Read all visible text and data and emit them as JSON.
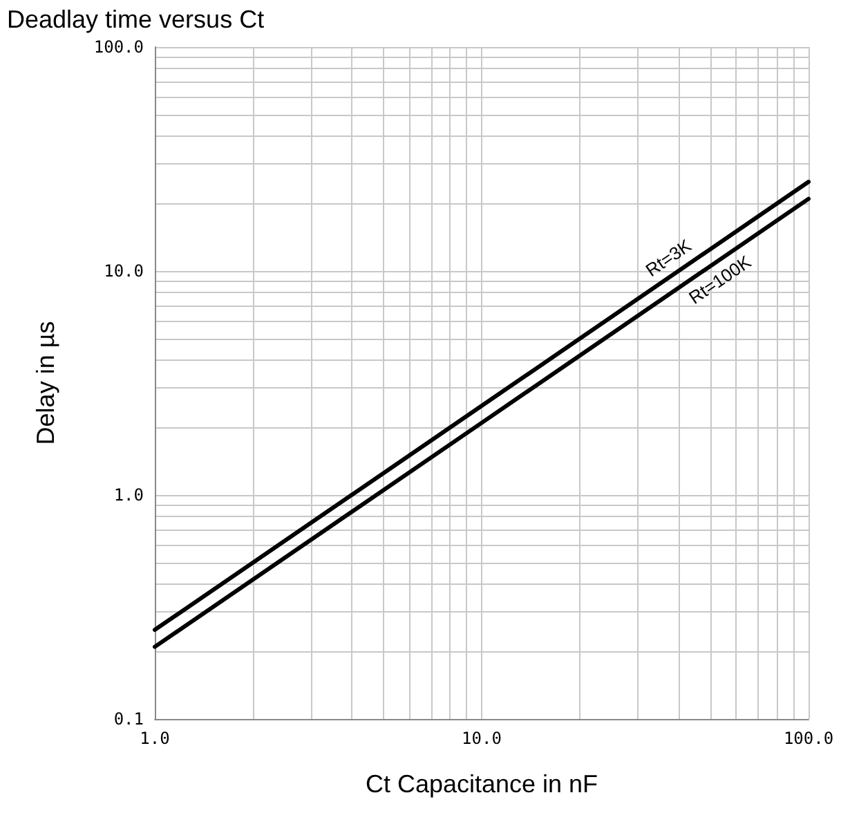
{
  "chart_data": {
    "type": "line",
    "title": "Deadlay time versus Ct",
    "xlabel": "Ct Capacitance in nF",
    "ylabel": "Delay in µs",
    "log": "xy",
    "grid": true,
    "legend": false,
    "marker": "none",
    "line_style": "solid",
    "x": [
      1,
      10,
      100
    ],
    "series": [
      {
        "name": "Rt=3K",
        "color": "#000000",
        "values": [
          0.25,
          2.5,
          25
        ]
      },
      {
        "name": "Rt=100K",
        "color": "#000000",
        "values": [
          0.21,
          2.1,
          21
        ]
      }
    ],
    "xlim": [
      1,
      100
    ],
    "ylim": [
      0.1,
      100
    ],
    "xticks": [
      {
        "value": 1,
        "label": "1.0"
      },
      {
        "value": 2,
        "label": null
      },
      {
        "value": 3,
        "label": null
      },
      {
        "value": 4,
        "label": null
      },
      {
        "value": 5,
        "label": null
      },
      {
        "value": 6,
        "label": null
      },
      {
        "value": 7,
        "label": null
      },
      {
        "value": 8,
        "label": null
      },
      {
        "value": 9,
        "label": null
      },
      {
        "value": 10,
        "label": "10.0"
      },
      {
        "value": 20,
        "label": null
      },
      {
        "value": 30,
        "label": null
      },
      {
        "value": 40,
        "label": null
      },
      {
        "value": 50,
        "label": null
      },
      {
        "value": 60,
        "label": null
      },
      {
        "value": 70,
        "label": null
      },
      {
        "value": 80,
        "label": null
      },
      {
        "value": 90,
        "label": null
      },
      {
        "value": 100,
        "label": "100.0"
      }
    ],
    "yticks": [
      0.1,
      {
        "value": 0.2,
        "label": null
      },
      {
        "value": 0.3,
        "label": null
      },
      {
        "value": 0.4,
        "label": null
      },
      {
        "value": 0.5,
        "label": null
      },
      {
        "value": 0.6,
        "label": null
      },
      {
        "value": 0.7,
        "label": null
      },
      {
        "value": 0.8,
        "label": null
      },
      {
        "value": 0.9,
        "label": null
      },
      {
        "value": 1,
        "label": "1.0"
      },
      {
        "value": 2,
        "label": null
      },
      {
        "value": 3,
        "label": null
      },
      {
        "value": 4,
        "label": null
      },
      {
        "value": 5,
        "label": null
      },
      {
        "value": 6,
        "label": null
      },
      {
        "value": 7,
        "label": null
      },
      {
        "value": 8,
        "label": null
      },
      {
        "value": 9,
        "label": null
      },
      {
        "value": 10,
        "label": "10.0"
      },
      {
        "value": 20,
        "label": null
      },
      {
        "value": 30,
        "label": null
      },
      {
        "value": 40,
        "label": null
      },
      {
        "value": 50,
        "label": null
      },
      {
        "value": 60,
        "label": null
      },
      {
        "value": 70,
        "label": null
      },
      {
        "value": 80,
        "label": null
      },
      {
        "value": 90,
        "label": null
      },
      {
        "value": 100,
        "label": "100.0"
      }
    ]
  }
}
